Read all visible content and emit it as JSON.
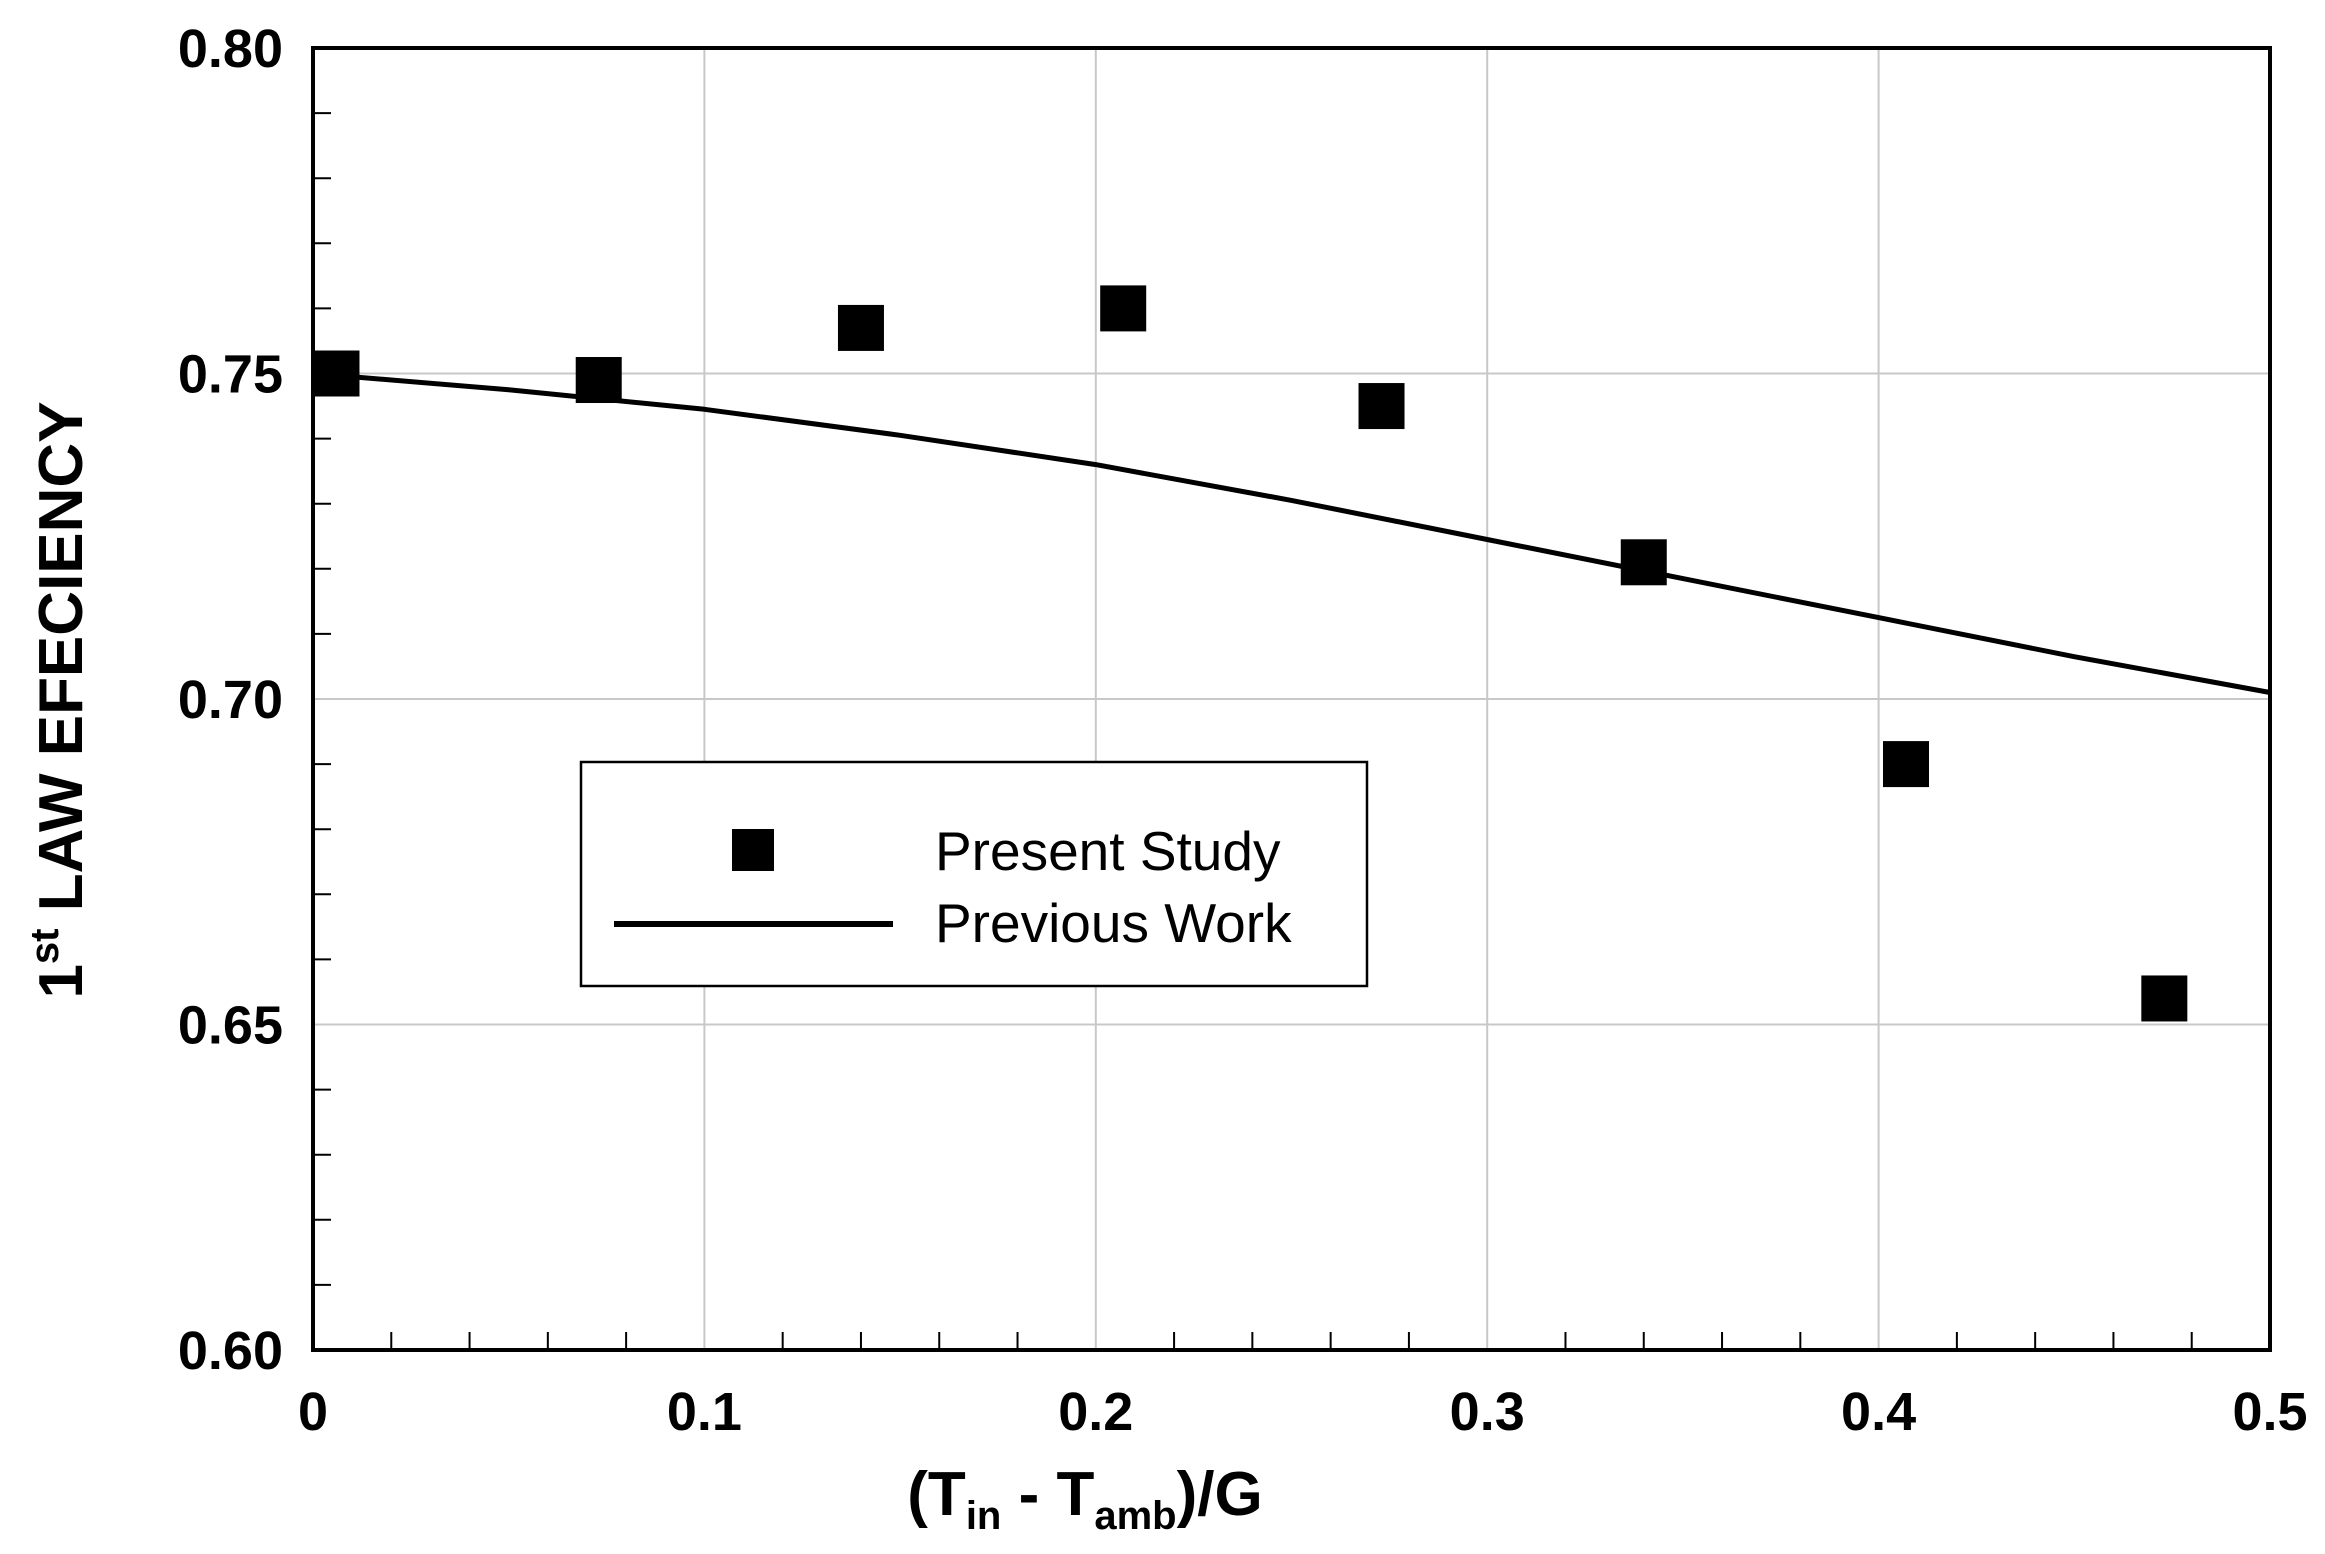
{
  "chart_data": {
    "type": "scatter",
    "title": "",
    "xlabel": {
      "prefix": "(T",
      "sub1": "in",
      "middle": " - T",
      "sub2": "amb",
      "suffix": ")/G"
    },
    "ylabel": {
      "prefix": "1",
      "sup": "st",
      "rest": " LAW EFECIENCY"
    },
    "xlim": [
      0,
      0.5
    ],
    "ylim": [
      0.6,
      0.8
    ],
    "x_ticks": [
      0,
      0.1,
      0.2,
      0.3,
      0.4,
      0.5
    ],
    "x_tick_labels": [
      "0",
      "0.1",
      "0.2",
      "0.3",
      "0.4",
      "0.5"
    ],
    "y_ticks": [
      0.6,
      0.65,
      0.7,
      0.75,
      0.8
    ],
    "y_tick_labels": [
      "0.60",
      "0.65",
      "0.70",
      "0.75",
      "0.80"
    ],
    "grid": true,
    "legend_position": "center-left",
    "series": [
      {
        "name": "Present Study",
        "style": "square-marker",
        "x": [
          0.006,
          0.073,
          0.14,
          0.207,
          0.273,
          0.34,
          0.407,
          0.473
        ],
        "y": [
          0.75,
          0.749,
          0.757,
          0.76,
          0.745,
          0.721,
          0.69,
          0.654
        ]
      },
      {
        "name": "Previous Work",
        "style": "solid-line",
        "x": [
          0.0,
          0.05,
          0.1,
          0.15,
          0.2,
          0.25,
          0.3,
          0.35,
          0.4,
          0.45,
          0.5
        ],
        "y": [
          0.75,
          0.7475,
          0.7445,
          0.7405,
          0.736,
          0.7305,
          0.7245,
          0.7185,
          0.7125,
          0.7065,
          0.701
        ]
      }
    ]
  }
}
